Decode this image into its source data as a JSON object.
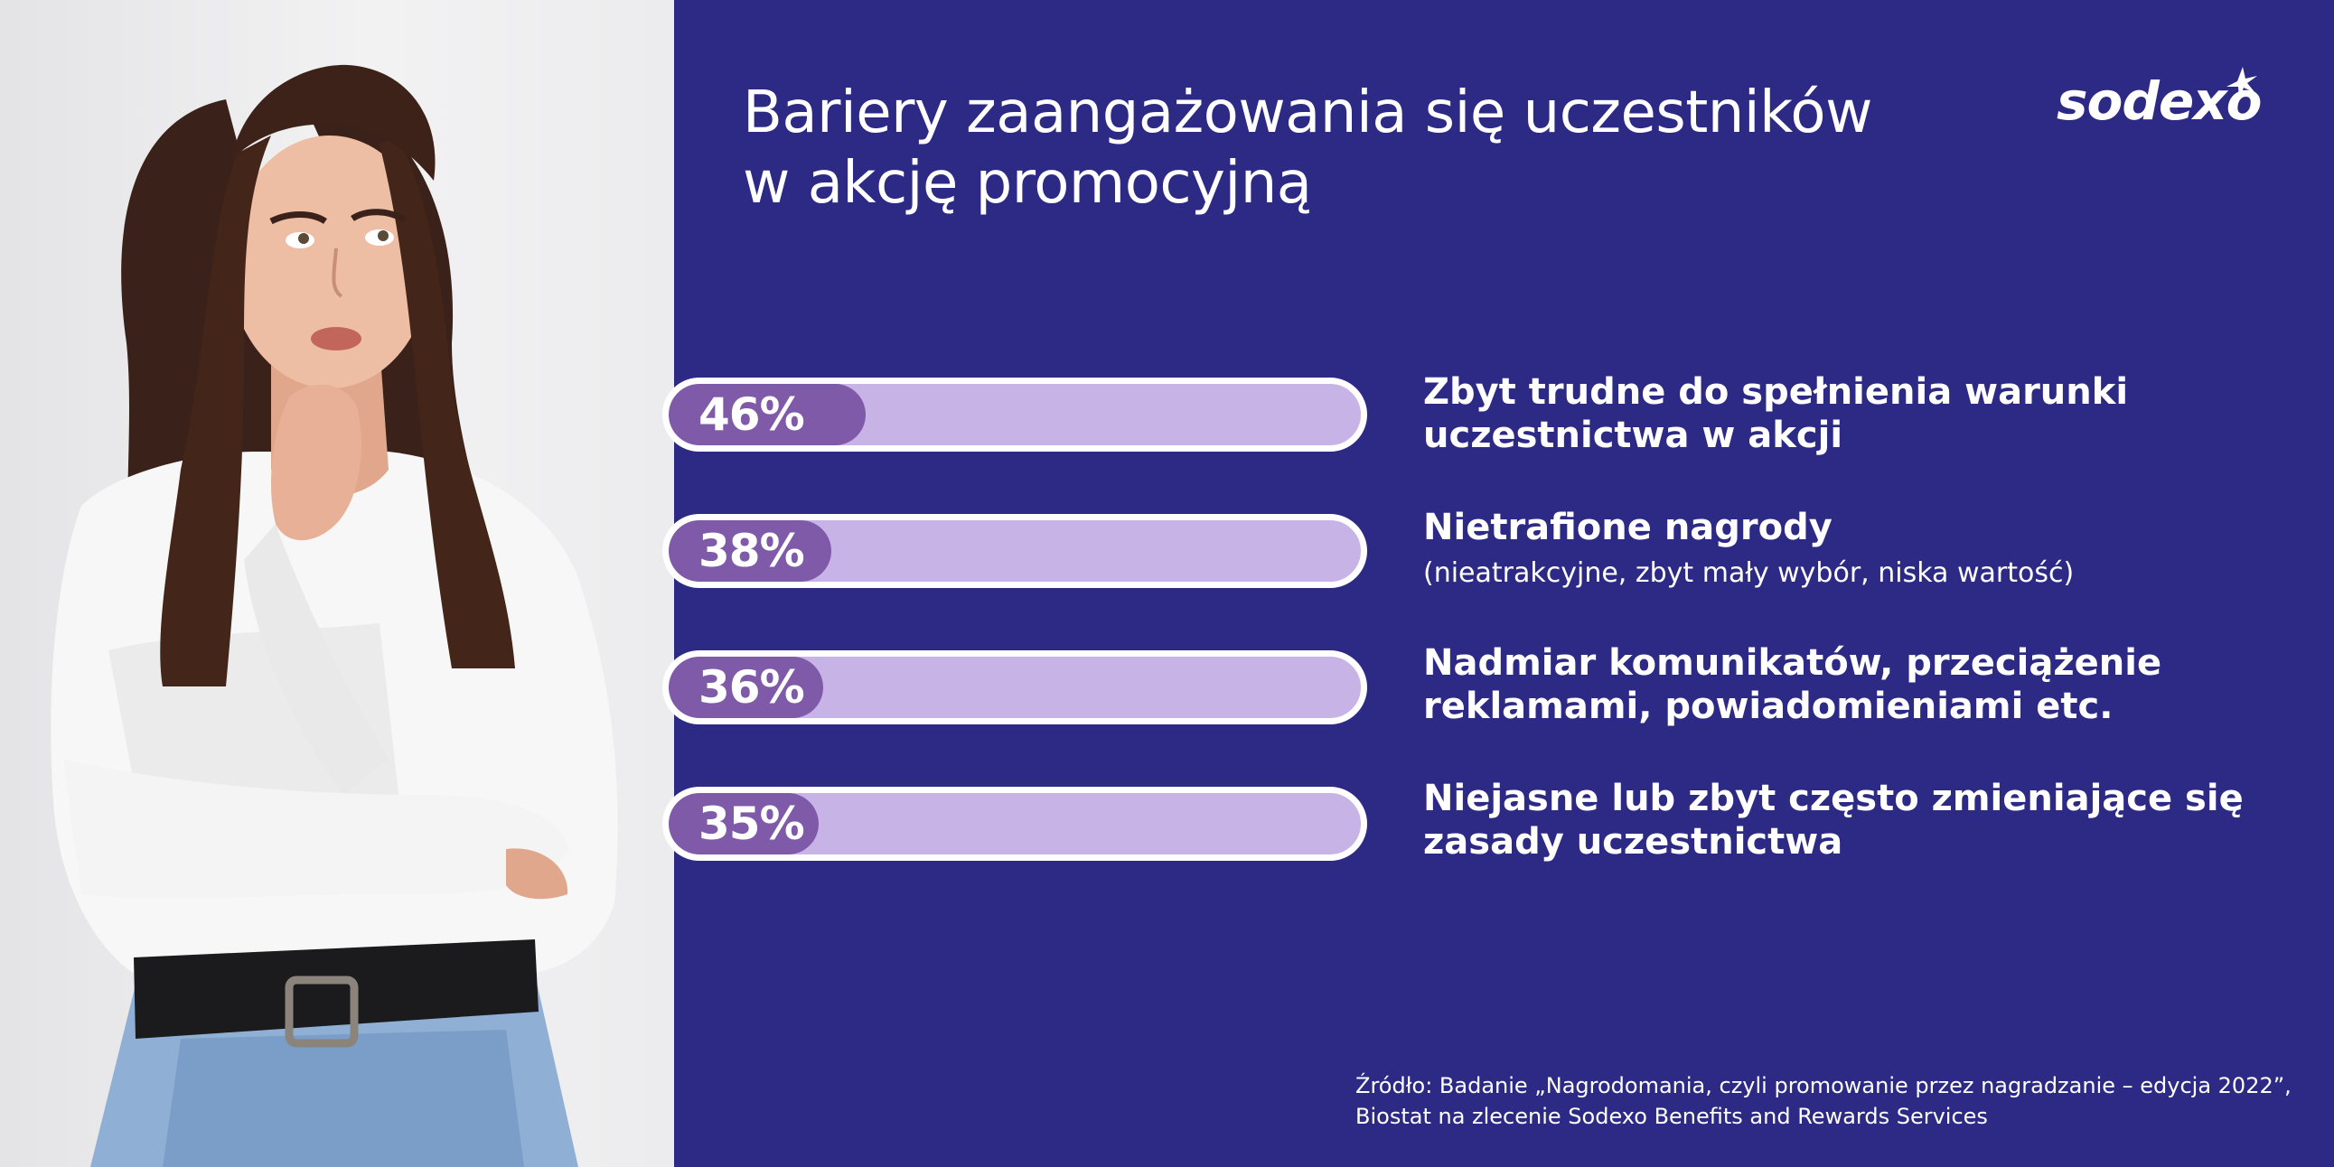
{
  "title": {
    "line1": "Bariery zaangażowania się uczestników",
    "line2": "w akcję promocyjną"
  },
  "logo": {
    "text": "sodexo",
    "icon": "star-icon"
  },
  "colors": {
    "background": "#2c2a85",
    "bar_fill": "#7f5aa8",
    "bar_track": "#c8b3e6",
    "text": "#ffffff"
  },
  "chart_data": {
    "type": "bar",
    "title": "Bariery zaangażowania się uczestników w akcję promocyjną",
    "orientation": "horizontal",
    "unit": "%",
    "xlim": [
      0,
      100
    ],
    "categories": [
      "Zbyt trudne do spełnienia warunki uczestnictwa w akcji",
      "Nietrafione nagrody",
      "Nadmiar komunikatów, przeciążenie reklamami, powiadomieniami etc.",
      "Niejasne lub zbyt często zmieniające się zasady uczestnictwa"
    ],
    "values": [
      46,
      38,
      36,
      35
    ],
    "bars": [
      {
        "value": 46,
        "value_label": "46%",
        "label_lines": [
          "Zbyt trudne do spełnienia warunki",
          "uczestnictwa w akcji"
        ],
        "note": ""
      },
      {
        "value": 38,
        "value_label": "38%",
        "label_lines": [
          "Nietrafione nagrody"
        ],
        "note": "(nieatrakcyjne, zbyt mały wybór, niska wartość)"
      },
      {
        "value": 36,
        "value_label": "36%",
        "label_lines": [
          "Nadmiar komunikatów, przeciążenie",
          "reklamami, powiadomieniami etc."
        ],
        "note": ""
      },
      {
        "value": 35,
        "value_label": "35%",
        "label_lines": [
          "Niejasne lub zbyt często zmieniające się",
          "zasady uczestnictwa"
        ],
        "note": ""
      }
    ]
  },
  "source": {
    "line1": "Źródło: Badanie „Nagrodomania, czyli promowanie przez nagradzanie – edycja 2022”,",
    "line2": "Biostat na zlecenie Sodexo Benefits and Rewards Services"
  }
}
